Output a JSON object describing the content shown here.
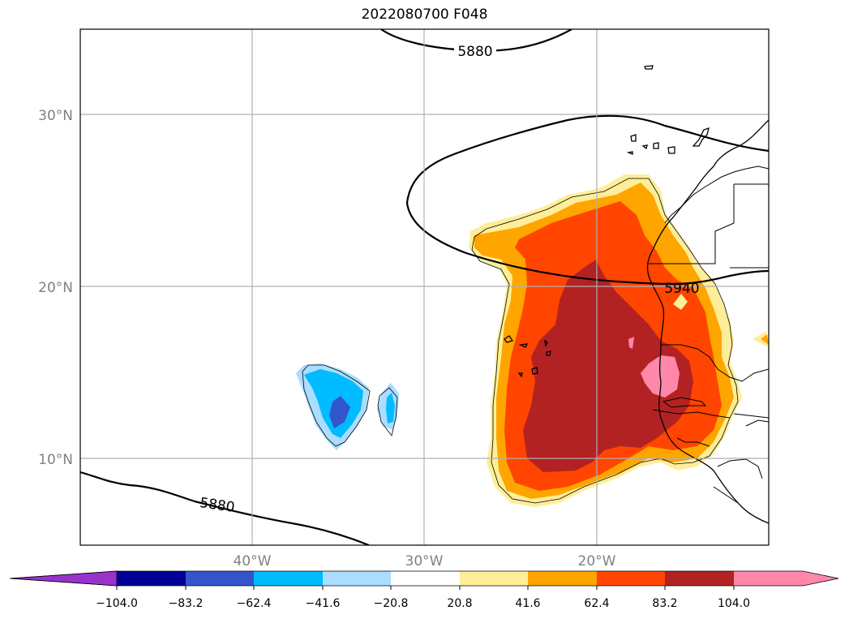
{
  "title": "2022080700 F048",
  "map": {
    "lat_labels": [
      "30°N",
      "20°N",
      "10°N"
    ],
    "lon_labels": [
      "40°W",
      "30°W",
      "20°W"
    ],
    "contour_labels": [
      "5880",
      "5940",
      "5880"
    ],
    "grid": true,
    "coastlines": true
  },
  "colorbar": {
    "labels": [
      "−104.0",
      "−83.2",
      "−62.4",
      "−41.6",
      "−20.8",
      "20.8",
      "41.6",
      "62.4",
      "83.2",
      "104.0"
    ],
    "colors": [
      "#9933cc",
      "#000099",
      "#3355cc",
      "#00bbff",
      "#aaddff",
      "#ffffff",
      "#ffee99",
      "#ffa500",
      "#ff4500",
      "#b22222",
      "#ff88aa"
    ],
    "extend": "both"
  }
}
